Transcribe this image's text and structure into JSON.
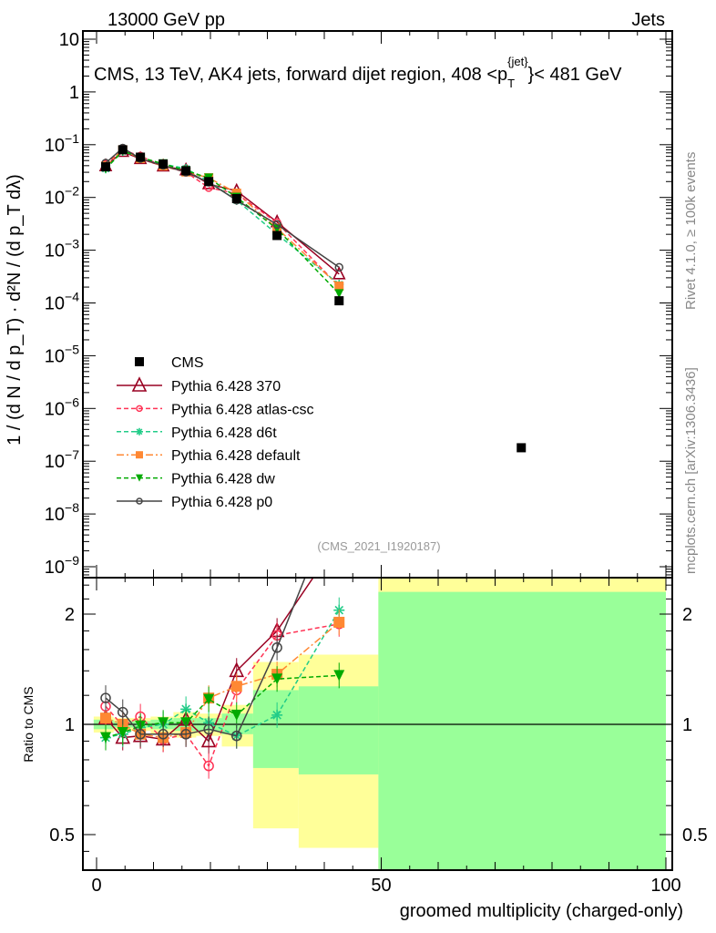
{
  "header": {
    "left": "13000 GeV pp",
    "right": "Jets"
  },
  "side_labels": {
    "rivet": "Rivet 4.1.0, ≥ 100k events",
    "mcplots": "mcplots.cern.ch [arXiv:1306.3436]"
  },
  "watermark": "(CMS_2021_I1920187)",
  "chart_data": {
    "type": "line",
    "title": "CMS, 13 TeV, AK4 jets, forward dijet region, 408 <p_T^{jet}< 481 GeV",
    "title_parts": {
      "main": "CMS, 13 TeV, AK4 jets, forward dijet region, 408 <p",
      "sub": "T",
      "sup": "{jet}",
      "tail": "}< 481 GeV"
    },
    "xlabel": "groomed multiplicity (charged-only)",
    "ylabel": "1 / (d N / d p_T) · d²N / (d p_T dλ)",
    "ratio_ylabel": "Ratio to CMS",
    "xlim": [
      -2,
      100
    ],
    "ylim": [
      6e-10,
      14
    ],
    "ratio_ylim": [
      0.4,
      2.5
    ],
    "x_ticks": [
      "0",
      "50",
      "100"
    ],
    "y_ticks": [
      {
        "base": "10",
        "exp": ""
      },
      {
        "base": "1",
        "exp": ""
      },
      {
        "base": "10",
        "exp": "−1"
      },
      {
        "base": "10",
        "exp": "−2"
      },
      {
        "base": "10",
        "exp": "−3"
      },
      {
        "base": "10",
        "exp": "−4"
      },
      {
        "base": "10",
        "exp": "−5"
      },
      {
        "base": "10",
        "exp": "−6"
      },
      {
        "base": "10",
        "exp": "−7"
      },
      {
        "base": "10",
        "exp": "−8"
      },
      {
        "base": "10",
        "exp": "−9"
      }
    ],
    "ratio_ticks": [
      "2",
      "1",
      "0.5"
    ],
    "x": [
      1.6,
      4.6,
      7.7,
      11.7,
      15.7,
      19.7,
      24.6,
      31.7,
      42.6,
      74.6
    ],
    "bin_edges": [
      -0.5,
      3,
      6,
      9.5,
      13.5,
      17.5,
      22,
      27.5,
      35.5,
      49.5,
      100
    ],
    "data": {
      "name": "CMS",
      "values": [
        0.038,
        0.08,
        0.058,
        0.043,
        0.032,
        0.02,
        0.0095,
        0.0019,
        0.00011,
        1.8e-07
      ]
    },
    "ratio_band_total": [
      [
        0.95,
        1.05
      ],
      [
        0.96,
        1.04
      ],
      [
        0.96,
        1.04
      ],
      [
        0.94,
        1.05
      ],
      [
        0.92,
        1.08
      ],
      [
        0.93,
        1.07
      ],
      [
        0.87,
        1.13
      ],
      [
        0.52,
        1.48
      ],
      [
        0.46,
        1.55
      ],
      [
        0.3,
        3.0
      ]
    ],
    "ratio_band_stat": [
      [
        0.97,
        1.03
      ],
      [
        0.98,
        1.02
      ],
      [
        0.98,
        1.02
      ],
      [
        0.97,
        1.03
      ],
      [
        0.96,
        1.04
      ],
      [
        0.96,
        1.04
      ],
      [
        0.94,
        1.07
      ],
      [
        0.76,
        1.24
      ],
      [
        0.73,
        1.27
      ],
      [
        0.3,
        2.3
      ]
    ],
    "series_ratio": [
      {
        "name": "Pythia 6.428 370",
        "color": "#990022",
        "marker": "triangle-up",
        "dash": "",
        "values": [
          1.04,
          0.92,
          0.93,
          0.91,
          1.03,
          0.9,
          1.4,
          1.8,
          3.2
        ]
      },
      {
        "name": "Pythia 6.428 atlas-csc",
        "color": "#ff3355",
        "marker": "circle-open",
        "dash": "5,3",
        "values": [
          1.12,
          0.99,
          1.05,
          0.91,
          0.94,
          0.77,
          1.24,
          1.75,
          1.88
        ]
      },
      {
        "name": "Pythia 6.428 d6t",
        "color": "#22cc88",
        "marker": "asterisk",
        "dash": "5,3",
        "values": [
          0.92,
          0.94,
          0.98,
          1.0,
          1.1,
          1.01,
          0.93,
          1.06,
          2.05
        ]
      },
      {
        "name": "Pythia 6.428 default",
        "color": "#ff8833",
        "marker": "square",
        "dash": "8,3,2,3",
        "values": [
          1.04,
          1.0,
          0.94,
          0.92,
          0.95,
          1.18,
          1.27,
          1.37,
          1.9
        ]
      },
      {
        "name": "Pythia 6.428 dw",
        "color": "#00aa00",
        "marker": "triangle-down",
        "dash": "5,3",
        "values": [
          0.92,
          0.95,
          0.99,
          1.01,
          1.01,
          1.17,
          1.06,
          1.33,
          1.36
        ]
      },
      {
        "name": "Pythia 6.428 p0",
        "color": "#444444",
        "marker": "circle-open",
        "dash": "",
        "values": [
          1.18,
          1.08,
          0.94,
          0.94,
          0.94,
          0.97,
          0.93,
          1.62,
          4.3
        ]
      }
    ],
    "legend": {
      "placement": "left-middle"
    },
    "colors": {
      "band_total": "#ffff99",
      "band_stat": "#99ff99"
    }
  }
}
